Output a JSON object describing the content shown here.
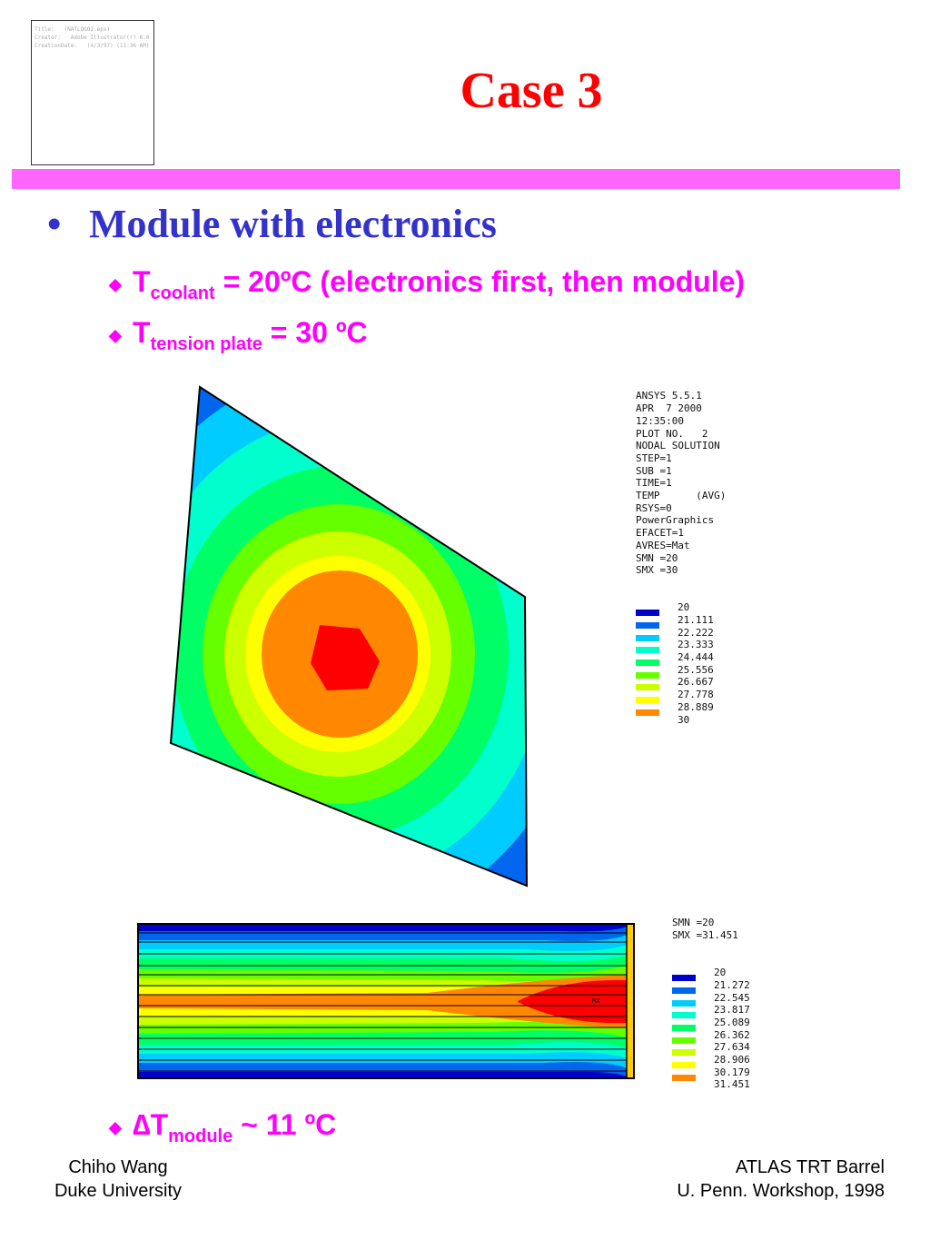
{
  "slide": {
    "title": "Case 3",
    "eps_placeholder": [
      "Title:   (NATLOGO2.eps)",
      "Creator:   Adobe Illustrator(r) 6.0",
      "CreationDate:   (4/3/97) (11:36 AM)"
    ]
  },
  "bullets": {
    "main_symbol": "•",
    "main": "Module with electronics",
    "sub_symbol": "◆",
    "sub1": {
      "t": "T",
      "subscript": "coolant",
      "rest": " = 20ºC (electronics first, then module)"
    },
    "sub2": {
      "t": "T",
      "subscript": "tension plate",
      "rest": " = 30 ºC"
    },
    "sub3": {
      "delta": "∆",
      "t": "T",
      "subscript": "module",
      "rest": " ~ 11 ºC"
    }
  },
  "plot1": {
    "header": [
      "ANSYS 5.5.1",
      "APR  7 2000",
      "12:35:00",
      "PLOT NO.   2",
      "NODAL SOLUTION",
      "STEP=1",
      "SUB =1",
      "TIME=1",
      "TEMP      (AVG)",
      "RSYS=0",
      "PowerGraphics",
      "EFACET=1",
      "AVRES=Mat",
      "SMN =20",
      "SMX =30"
    ],
    "levels": [
      "20",
      "21.111",
      "22.222",
      "23.333",
      "24.444",
      "25.556",
      "26.667",
      "27.778",
      "28.889",
      "30"
    ],
    "colors": [
      "#0000cc",
      "#0066ee",
      "#00ccff",
      "#00ffcc",
      "#00ff66",
      "#66ff00",
      "#ccff00",
      "#ffff00",
      "#ff8800",
      "#ff0000"
    ]
  },
  "plot2": {
    "header": [
      "SMN =20",
      "SMX =31.451"
    ],
    "levels": [
      "20",
      "21.272",
      "22.545",
      "23.817",
      "25.089",
      "26.362",
      "27.634",
      "28.906",
      "30.179",
      "31.451"
    ],
    "colors": [
      "#0000cc",
      "#0066ee",
      "#00ccff",
      "#00ffcc",
      "#00ff66",
      "#66ff00",
      "#ccff00",
      "#ffff00",
      "#ff8800",
      "#ff0000"
    ],
    "mx_label": "MX"
  },
  "footer": {
    "left_line1": "Chiho Wang",
    "left_line2": "Duke University",
    "right_line1": "ATLAS TRT Barrel",
    "right_line2": "U. Penn. Workshop, 1998"
  }
}
